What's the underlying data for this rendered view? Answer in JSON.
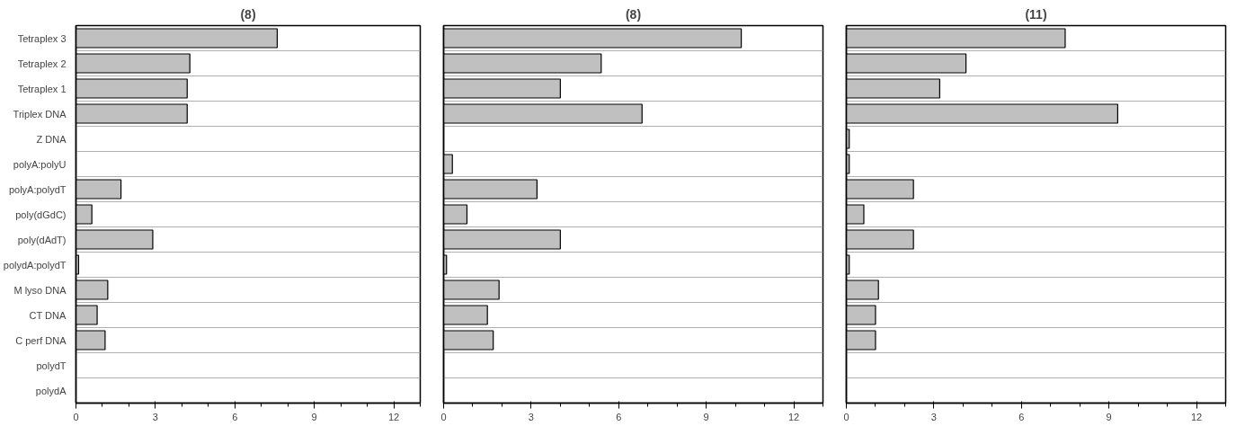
{
  "chart_data": [
    {
      "type": "bar",
      "orientation": "horizontal",
      "title": "(8)",
      "categories": [
        "Tetraplex 3",
        "Tetraplex 2",
        "Tetraplex 1",
        "Triplex DNA",
        "Z DNA",
        "polyA:polyU",
        "polyA:polydT",
        "poly(dGdC)",
        "poly(dAdT)",
        "polydA:polydT",
        "M lyso DNA",
        "CT DNA",
        "C perf DNA",
        "polydT",
        "polydA"
      ],
      "series": [
        {
          "color": "#c0c0c0",
          "values": [
            7.6,
            4.3,
            4.2,
            4.2,
            0,
            0,
            1.7,
            0.6,
            2.9,
            0.1,
            1.2,
            0.8,
            1.1,
            0,
            0
          ]
        }
      ],
      "xlim": [
        0,
        13
      ],
      "xticks": [
        0,
        3,
        6,
        9,
        12
      ],
      "grid": "y"
    },
    {
      "type": "bar",
      "orientation": "horizontal",
      "title": "(8)",
      "categories": [
        null,
        null,
        null,
        null,
        null,
        null,
        null,
        null,
        null,
        null,
        null,
        null,
        null,
        null,
        null
      ],
      "series": [
        {
          "color": "#c0c0c0",
          "values": [
            10.2,
            5.4,
            4.0,
            6.8,
            0,
            0.3,
            3.2,
            0.8,
            4.0,
            0.1,
            1.9,
            1.5,
            1.7,
            0,
            0
          ]
        }
      ],
      "xlim": [
        0,
        13
      ],
      "xticks": [
        0,
        3,
        6,
        9,
        12
      ],
      "grid": "y",
      "tick_labels": "x"
    },
    {
      "type": "bar",
      "orientation": "horizontal",
      "title": "(11)",
      "categories": [
        null,
        null,
        null,
        null,
        null,
        null,
        null,
        null,
        null,
        null,
        null,
        null,
        null,
        null,
        null
      ],
      "series": [
        {
          "color": "#c0c0c0",
          "values": [
            7.5,
            4.1,
            3.2,
            9.3,
            0.1,
            0.1,
            2.3,
            0.6,
            2.3,
            0.1,
            1.1,
            1.0,
            1.0,
            0,
            0
          ]
        }
      ],
      "xlim": [
        0,
        13
      ],
      "xticks": [
        0,
        3,
        6,
        9,
        12
      ],
      "grid": "y",
      "tick_labels": "x"
    }
  ]
}
